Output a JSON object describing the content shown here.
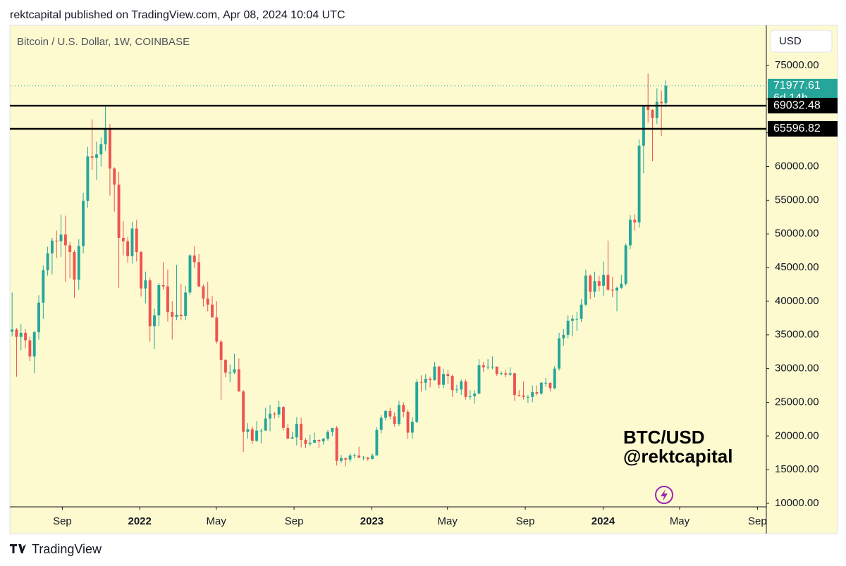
{
  "header": "rektcapital published on TradingView.com, Apr 08, 2024 10:04 UTC",
  "symbol_info": "Bitcoin / U.S. Dollar, 1W, COINBASE",
  "currency": "USD",
  "watermark": [
    "BTC/USD",
    "@rektcapital"
  ],
  "footer": "TradingView",
  "chart_data": {
    "type": "candlestick",
    "up_color": "#26a69a",
    "down_color": "#ef5350",
    "xlim": [
      0.5,
      170.6
    ],
    "xticks": [
      {
        "value": 12.3,
        "label": "Sep"
      },
      {
        "value": 29.7,
        "label": "2022"
      },
      {
        "value": 46.9,
        "label": "May"
      },
      {
        "value": 64.4,
        "label": "Sep"
      },
      {
        "value": 81.9,
        "label": "2023"
      },
      {
        "value": 98.9,
        "label": "May"
      },
      {
        "value": 116.4,
        "label": "Sep"
      },
      {
        "value": 133.9,
        "label": "2024"
      },
      {
        "value": 151.1,
        "label": "May"
      },
      {
        "value": 168.6,
        "label": "Sep"
      }
    ],
    "ylim": [
      9477,
      80957
    ],
    "yticks": [
      {
        "value": 10000,
        "label": "10000.00"
      },
      {
        "value": 15000,
        "label": "15000.00"
      },
      {
        "value": 20000,
        "label": "20000.00"
      },
      {
        "value": 25000,
        "label": "25000.00"
      },
      {
        "value": 30000,
        "label": "30000.00"
      },
      {
        "value": 35000,
        "label": "35000.00"
      },
      {
        "value": 40000,
        "label": "40000.00"
      },
      {
        "value": 45000,
        "label": "45000.00"
      },
      {
        "value": 50000,
        "label": "50000.00"
      },
      {
        "value": 55000,
        "label": "55000.00"
      },
      {
        "value": 60000,
        "label": "60000.00"
      },
      {
        "value": 65000,
        "label": "65000.00"
      },
      {
        "value": 70000,
        "label": "70000.00"
      },
      {
        "value": 75000,
        "label": "75000.00"
      }
    ],
    "levels": [
      69032.48,
      65596.82
    ],
    "countdown": "6d 14h",
    "candles": [
      [
        36700,
        39500,
        31000,
        35500
      ],
      [
        35500,
        41300,
        34800,
        35800
      ],
      [
        35800,
        36000,
        28800,
        34700
      ],
      [
        34700,
        36600,
        32700,
        35300
      ],
      [
        35300,
        35900,
        33000,
        34200
      ],
      [
        34200,
        34700,
        31100,
        31800
      ],
      [
        31800,
        35600,
        29300,
        35400
      ],
      [
        35400,
        40900,
        34300,
        39800
      ],
      [
        39800,
        45300,
        37400,
        44600
      ],
      [
        44600,
        48100,
        43800,
        47100
      ],
      [
        47100,
        49400,
        44000,
        49000
      ],
      [
        49000,
        50500,
        46400,
        48900
      ],
      [
        48900,
        52900,
        46600,
        49900
      ],
      [
        49900,
        52700,
        42900,
        48300
      ],
      [
        48300,
        48800,
        43400,
        47300
      ],
      [
        47300,
        47600,
        40500,
        43200
      ],
      [
        43200,
        49200,
        41700,
        48200
      ],
      [
        48200,
        56100,
        47100,
        54900
      ],
      [
        54900,
        62900,
        53900,
        61500
      ],
      [
        61500,
        67000,
        59500,
        61300
      ],
      [
        61300,
        63700,
        58000,
        61800
      ],
      [
        61800,
        64300,
        60000,
        63300
      ],
      [
        63300,
        69000,
        62300,
        65500
      ],
      [
        65500,
        66300,
        55700,
        59700
      ],
      [
        59700,
        59900,
        53300,
        57300
      ],
      [
        57300,
        59200,
        42000,
        49400
      ],
      [
        49400,
        51900,
        46800,
        48900
      ],
      [
        48900,
        49500,
        45700,
        46700
      ],
      [
        46700,
        51800,
        45600,
        50800
      ],
      [
        50800,
        52100,
        45900,
        47300
      ],
      [
        47300,
        47500,
        40700,
        41900
      ],
      [
        41900,
        44400,
        39700,
        43100
      ],
      [
        43100,
        43500,
        34000,
        36300
      ],
      [
        36300,
        38900,
        32900,
        37900
      ],
      [
        37900,
        42700,
        36300,
        42400
      ],
      [
        42400,
        45800,
        41700,
        42200
      ],
      [
        42200,
        44700,
        37000,
        38400
      ],
      [
        38400,
        40000,
        34300,
        37700
      ],
      [
        37700,
        45400,
        37200,
        38000
      ],
      [
        38000,
        42600,
        37200,
        37800
      ],
      [
        37800,
        42300,
        37200,
        41300
      ],
      [
        41300,
        47000,
        40900,
        46800
      ],
      [
        46800,
        48200,
        44900,
        45800
      ],
      [
        45800,
        47000,
        42100,
        42200
      ],
      [
        42200,
        42500,
        39200,
        40400
      ],
      [
        40400,
        42900,
        38500,
        39500
      ],
      [
        39500,
        40800,
        37600,
        37600
      ],
      [
        37600,
        40000,
        33700,
        34000
      ],
      [
        34000,
        34300,
        25400,
        31300
      ],
      [
        31300,
        31400,
        28700,
        29400
      ],
      [
        29400,
        30600,
        28000,
        29400
      ],
      [
        29400,
        32200,
        29200,
        29900
      ],
      [
        29900,
        31500,
        26600,
        26600
      ],
      [
        26600,
        26800,
        17600,
        20600
      ],
      [
        20600,
        21900,
        19600,
        21000
      ],
      [
        21000,
        21400,
        18800,
        19300
      ],
      [
        19300,
        22200,
        19100,
        20800
      ],
      [
        20800,
        21100,
        18900,
        20800
      ],
      [
        20800,
        24200,
        20800,
        22600
      ],
      [
        22600,
        24600,
        20700,
        23300
      ],
      [
        23300,
        23600,
        22600,
        23200
      ],
      [
        23200,
        25200,
        22700,
        24300
      ],
      [
        24300,
        24400,
        20800,
        21200
      ],
      [
        21200,
        21800,
        19600,
        19600
      ],
      [
        19600,
        20600,
        19600,
        19800
      ],
      [
        19800,
        22800,
        18600,
        21800
      ],
      [
        21800,
        22700,
        18300,
        19400
      ],
      [
        19400,
        19700,
        18200,
        18800
      ],
      [
        18800,
        20200,
        18500,
        19000
      ],
      [
        19000,
        20500,
        19000,
        19400
      ],
      [
        19400,
        19500,
        18200,
        19200
      ],
      [
        19200,
        19700,
        18700,
        19600
      ],
      [
        19600,
        20900,
        19300,
        20600
      ],
      [
        20600,
        21100,
        20000,
        21200
      ],
      [
        21200,
        21500,
        15600,
        16300
      ],
      [
        16300,
        17200,
        16000,
        16700
      ],
      [
        16700,
        16800,
        15500,
        16500
      ],
      [
        16500,
        17400,
        16100,
        17100
      ],
      [
        17100,
        17400,
        16700,
        17100
      ],
      [
        17100,
        18400,
        16700,
        16800
      ],
      [
        16800,
        17000,
        16400,
        16800
      ],
      [
        16800,
        16900,
        16300,
        16600
      ],
      [
        16600,
        17400,
        16500,
        17100
      ],
      [
        17100,
        21300,
        17100,
        20900
      ],
      [
        20900,
        23100,
        20400,
        22700
      ],
      [
        22700,
        23900,
        22300,
        23700
      ],
      [
        23700,
        24200,
        22500,
        22900
      ],
      [
        22900,
        23500,
        21400,
        21800
      ],
      [
        21800,
        25200,
        21500,
        24600
      ],
      [
        24600,
        25000,
        22800,
        23600
      ],
      [
        23600,
        23900,
        19600,
        20500
      ],
      [
        20500,
        22800,
        19600,
        22100
      ],
      [
        22100,
        28400,
        21900,
        28000
      ],
      [
        28000,
        29000,
        26600,
        27900
      ],
      [
        27900,
        29200,
        26800,
        28500
      ],
      [
        28500,
        28800,
        27200,
        28300
      ],
      [
        28300,
        31000,
        28200,
        30300
      ],
      [
        30300,
        30400,
        27100,
        27600
      ],
      [
        27600,
        30000,
        27100,
        29200
      ],
      [
        29200,
        29800,
        27700,
        28900
      ],
      [
        28900,
        29100,
        25800,
        26800
      ],
      [
        26800,
        27600,
        26400,
        26900
      ],
      [
        26900,
        28400,
        26100,
        28100
      ],
      [
        28100,
        28400,
        25400,
        25800
      ],
      [
        25800,
        26800,
        25400,
        25900
      ],
      [
        25900,
        26800,
        24800,
        26300
      ],
      [
        26300,
        31400,
        26200,
        30500
      ],
      [
        30500,
        31000,
        29500,
        30200
      ],
      [
        30200,
        31400,
        29900,
        30300
      ],
      [
        30300,
        31800,
        29900,
        30300
      ],
      [
        30300,
        30300,
        28900,
        29200
      ],
      [
        29200,
        29600,
        29000,
        29300
      ],
      [
        29300,
        29800,
        28700,
        29100
      ],
      [
        29100,
        30200,
        28900,
        29300
      ],
      [
        29300,
        29400,
        25200,
        26100
      ],
      [
        26100,
        26800,
        25800,
        26000
      ],
      [
        26000,
        28100,
        25400,
        25800
      ],
      [
        25800,
        26100,
        24900,
        25800
      ],
      [
        25800,
        27500,
        25000,
        26500
      ],
      [
        26500,
        27500,
        26000,
        26300
      ],
      [
        26300,
        28000,
        26100,
        27900
      ],
      [
        27900,
        28600,
        27300,
        27900
      ],
      [
        27900,
        27900,
        26600,
        27100
      ],
      [
        27100,
        30400,
        26900,
        30000
      ],
      [
        30000,
        35300,
        29700,
        34500
      ],
      [
        34500,
        35900,
        33400,
        35000
      ],
      [
        35000,
        37900,
        34500,
        37100
      ],
      [
        37100,
        38000,
        34800,
        37400
      ],
      [
        37400,
        38400,
        35600,
        37400
      ],
      [
        37400,
        40300,
        36900,
        39500
      ],
      [
        39500,
        44700,
        39300,
        43800
      ],
      [
        43800,
        44000,
        40300,
        41400
      ],
      [
        41400,
        44400,
        40600,
        43000
      ],
      [
        43000,
        43800,
        41500,
        42300
      ],
      [
        42300,
        45900,
        40800,
        43900
      ],
      [
        43900,
        49000,
        41500,
        41700
      ],
      [
        41700,
        43600,
        40600,
        41600
      ],
      [
        41600,
        42200,
        38500,
        42000
      ],
      [
        42000,
        43900,
        41800,
        42600
      ],
      [
        42600,
        48600,
        42300,
        48300
      ],
      [
        48300,
        52800,
        47700,
        52100
      ],
      [
        52100,
        52900,
        50500,
        51700
      ],
      [
        51700,
        64000,
        50900,
        63100
      ],
      [
        63100,
        69000,
        59000,
        68900
      ],
      [
        68900,
        73800,
        66500,
        68400
      ],
      [
        68400,
        68500,
        60800,
        67200
      ],
      [
        67200,
        71600,
        66300,
        69600
      ],
      [
        69600,
        71300,
        64500,
        69400
      ],
      [
        69400,
        72800,
        68800,
        71977.61
      ]
    ]
  }
}
